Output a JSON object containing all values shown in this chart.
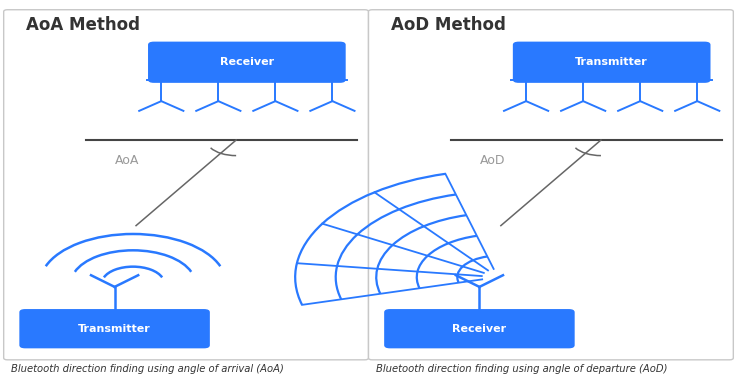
{
  "fig_width": 7.37,
  "fig_height": 3.89,
  "bg_color": "#ffffff",
  "border_color": "#c8c8c8",
  "blue_color": "#2979FF",
  "line_color": "#444444",
  "angle_line_color": "#666666",
  "title_color": "#333333",
  "label_color": "#999999",
  "caption_color": "#333333",
  "left_title": "AoA Method",
  "right_title": "AoD Method",
  "left_top_label": "Receiver",
  "right_top_label": "Transmitter",
  "left_bot_label": "Transmitter",
  "right_bot_label": "Receiver",
  "left_angle_label": "AoA",
  "right_angle_label": "AoD",
  "left_caption": "Bluetooth direction finding using angle of arrival (AoA)",
  "right_caption": "Bluetooth direction finding using angle of departure (AoD)"
}
